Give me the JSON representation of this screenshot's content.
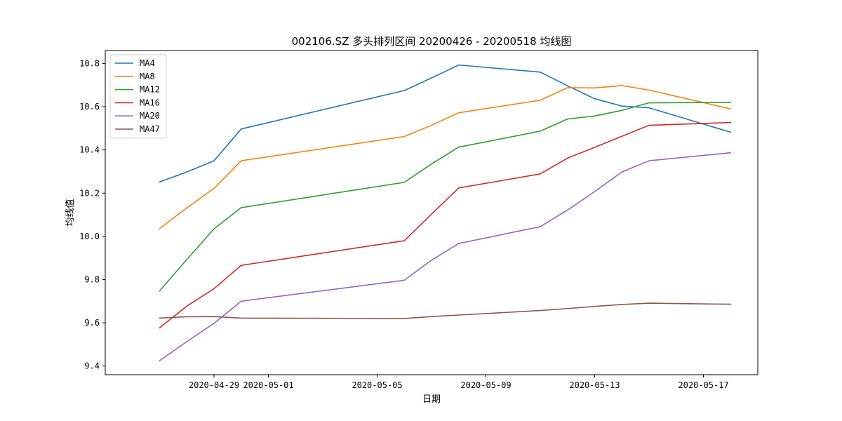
{
  "chart_data": {
    "type": "line",
    "title": "002106.SZ 多头排列区间 20200426 - 20200518 均线图",
    "xlabel": "日期",
    "ylabel": "均线值",
    "ylim": [
      9.36,
      10.86
    ],
    "xlim": [
      "2020-04-25",
      "2020-05-19"
    ],
    "x_ticks": [
      "2020-04-29",
      "2020-05-01",
      "2020-05-05",
      "2020-05-09",
      "2020-05-13",
      "2020-05-17"
    ],
    "y_ticks": [
      9.4,
      9.6,
      9.8,
      10.0,
      10.2,
      10.4,
      10.6,
      10.8
    ],
    "y_tick_labels": [
      "9.4",
      "9.6",
      "9.8",
      "10.0",
      "10.2",
      "10.4",
      "10.6",
      "10.8"
    ],
    "grid": false,
    "legend_position": "top-left",
    "x": [
      "2020-04-27",
      "2020-04-28",
      "2020-04-29",
      "2020-04-30",
      "2020-05-06",
      "2020-05-07",
      "2020-05-08",
      "2020-05-11",
      "2020-05-12",
      "2020-05-13",
      "2020-05-14",
      "2020-05-15",
      "2020-05-18"
    ],
    "series": [
      {
        "name": "MA4",
        "color": "#1f77b4",
        "values": [
          10.252,
          10.298,
          10.35,
          10.497,
          10.675,
          10.733,
          10.793,
          10.76,
          10.697,
          10.637,
          10.603,
          10.595,
          10.482
        ]
      },
      {
        "name": "MA8",
        "color": "#ff7f0e",
        "values": [
          10.036,
          10.132,
          10.222,
          10.35,
          10.462,
          10.514,
          10.572,
          10.63,
          10.688,
          10.687,
          10.698,
          10.677,
          10.59
        ]
      },
      {
        "name": "MA12",
        "color": "#2ca02c",
        "values": [
          9.748,
          9.893,
          10.035,
          10.133,
          10.25,
          10.335,
          10.413,
          10.487,
          10.543,
          10.557,
          10.583,
          10.618,
          10.62
        ]
      },
      {
        "name": "MA16",
        "color": "#d62728",
        "values": [
          9.577,
          9.677,
          9.758,
          9.866,
          9.98,
          10.103,
          10.224,
          10.289,
          10.362,
          10.412,
          10.463,
          10.514,
          10.527
        ]
      },
      {
        "name": "MA20",
        "color": "#9467bd",
        "values": [
          9.425,
          9.513,
          9.598,
          9.7,
          9.797,
          9.89,
          9.967,
          10.045,
          10.122,
          10.207,
          10.298,
          10.35,
          10.387
        ]
      },
      {
        "name": "MA47",
        "color": "#8c564b",
        "values": [
          9.622,
          9.628,
          9.629,
          9.622,
          9.62,
          9.629,
          9.636,
          9.657,
          9.666,
          9.676,
          9.685,
          9.691,
          9.686
        ]
      }
    ]
  }
}
